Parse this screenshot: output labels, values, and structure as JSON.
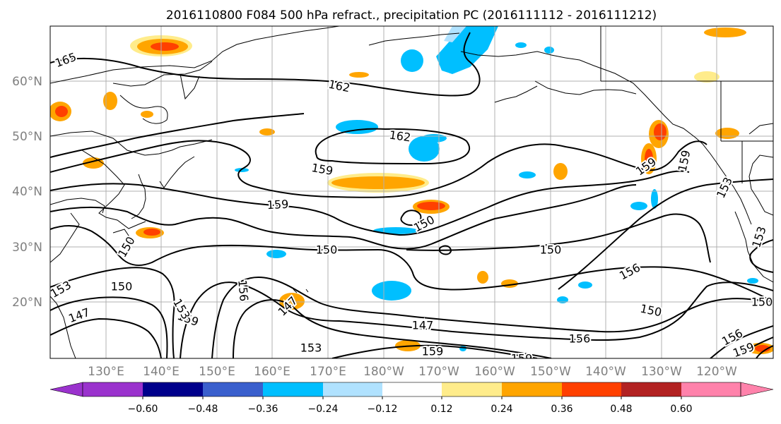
{
  "title": "2016110800 F084 500 hPa refract., precipitation PC (2016111112 - 2016111212)",
  "lat_labels": [
    "60°N",
    "50°N",
    "40°N",
    "30°N",
    "20°N"
  ],
  "lon_labels": [
    "130°E",
    "140°E",
    "150°E",
    "160°E",
    "170°E",
    "180°W",
    "170°W",
    "160°W",
    "150°W",
    "140°W",
    "130°W",
    "120°W"
  ],
  "colorbar": {
    "colors": [
      "#9a32cd",
      "#00008b",
      "#3a5fcd",
      "#00bfff",
      "#b0e2ff",
      "#ffffff",
      "#ffec8b",
      "#ffa500",
      "#ff4000",
      "#b22222",
      "#ff82ab"
    ],
    "tick_labels": [
      "−0.60",
      "−0.48",
      "−0.36",
      "−0.24",
      "−0.12",
      "0.12",
      "0.24",
      "0.36",
      "0.48",
      "0.60"
    ]
  },
  "contour_labels": [
    "165",
    "162",
    "162",
    "159",
    "159",
    "159",
    "159",
    "156",
    "156",
    "156",
    "156",
    "153",
    "153",
    "153",
    "153",
    "150",
    "150",
    "150",
    "150",
    "150",
    "150",
    "150",
    "147",
    "147",
    "147",
    "159",
    "159",
    "153",
    "159",
    "159"
  ],
  "palette": {
    "neg_light": "#b0e2ff",
    "neg_mid": "#00bfff",
    "pos_light": "#ffec8b",
    "pos_mid": "#ffa500",
    "pos_strong": "#ff4000",
    "pos_dark": "#b22222",
    "contour": "#000000",
    "grid": "#b0b0b0",
    "land": "#000000"
  }
}
